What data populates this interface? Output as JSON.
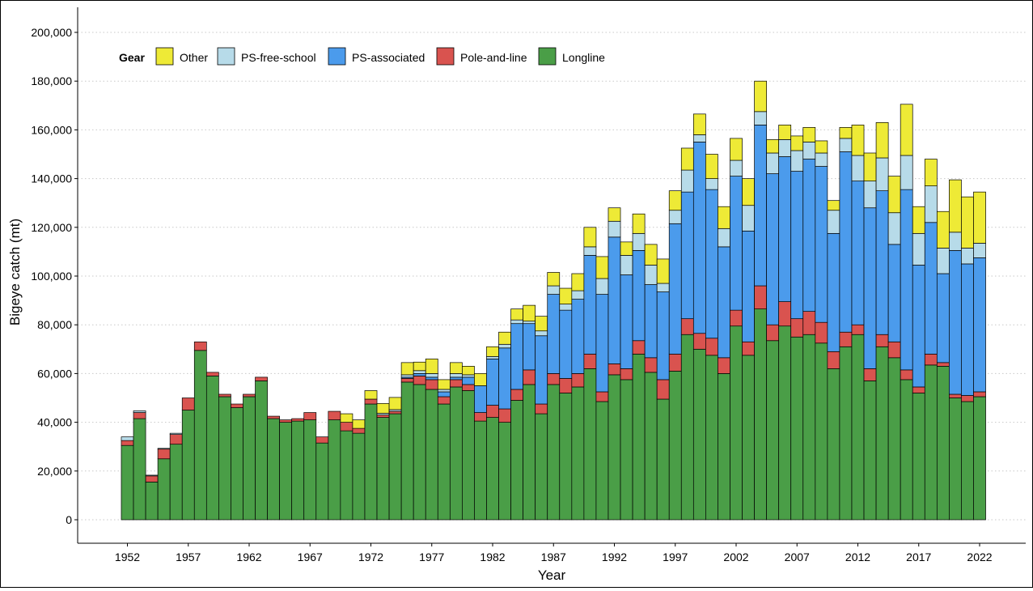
{
  "chart_data": {
    "type": "bar",
    "stacked": true,
    "title": "",
    "xlabel": "Year",
    "ylabel": "Bigeye catch (mt)",
    "ylim": [
      0,
      210000
    ],
    "y_ticks": [
      0,
      20000,
      40000,
      60000,
      80000,
      100000,
      120000,
      140000,
      160000,
      180000,
      200000
    ],
    "x_ticks": [
      1952,
      1957,
      1962,
      1967,
      1972,
      1977,
      1982,
      1987,
      1992,
      1997,
      2002,
      2007,
      2012,
      2017,
      2022
    ],
    "grid": "horizontal-dotted",
    "legend": {
      "title": "Gear",
      "placement": "top-left-inside"
    },
    "categories": [
      1952,
      1953,
      1954,
      1955,
      1956,
      1957,
      1958,
      1959,
      1960,
      1961,
      1962,
      1963,
      1964,
      1965,
      1966,
      1967,
      1968,
      1969,
      1970,
      1971,
      1972,
      1973,
      1974,
      1975,
      1976,
      1977,
      1978,
      1979,
      1980,
      1981,
      1982,
      1983,
      1984,
      1985,
      1986,
      1987,
      1988,
      1989,
      1990,
      1991,
      1992,
      1993,
      1994,
      1995,
      1996,
      1997,
      1998,
      1999,
      2000,
      2001,
      2002,
      2003,
      2004,
      2005,
      2006,
      2007,
      2008,
      2009,
      2010,
      2011,
      2012,
      2013,
      2014,
      2015,
      2016,
      2017,
      2018,
      2019,
      2020,
      2021,
      2022
    ],
    "series": [
      {
        "name": "Longline",
        "color": "#4a9e47",
        "values": [
          30500,
          41500,
          15500,
          25000,
          31000,
          45000,
          69500,
          59000,
          50500,
          46000,
          50500,
          57000,
          41500,
          40000,
          40500,
          41000,
          31500,
          41000,
          36500,
          35500,
          47500,
          42000,
          43500,
          56500,
          55500,
          53500,
          47500,
          54500,
          53000,
          40500,
          42000,
          40000,
          49000,
          55500,
          43500,
          55500,
          52000,
          54500,
          62000,
          48500,
          59500,
          57500,
          68000,
          60500,
          49500,
          61000,
          76000,
          70000,
          67500,
          60000,
          79500,
          67500,
          86500,
          73500,
          79500,
          75000,
          76000,
          72500,
          62000,
          71000,
          76000,
          57000,
          71000,
          66500,
          57500,
          52000,
          63500,
          63000,
          50000,
          48500,
          50500
        ]
      },
      {
        "name": "Pole-and-line",
        "color": "#d9534f",
        "values": [
          2000,
          2500,
          2500,
          4000,
          4000,
          5000,
          3500,
          1500,
          1000,
          1500,
          1000,
          1500,
          1000,
          1000,
          1000,
          3000,
          2500,
          3500,
          3500,
          2000,
          2000,
          1000,
          1000,
          1500,
          3500,
          4000,
          3000,
          3000,
          2500,
          3500,
          5000,
          5500,
          4500,
          6000,
          4000,
          4500,
          6000,
          5500,
          6000,
          4000,
          4500,
          4500,
          5500,
          6000,
          8000,
          7000,
          6500,
          6500,
          7000,
          6500,
          6500,
          5500,
          9500,
          6500,
          10000,
          7500,
          9500,
          8500,
          7000,
          6000,
          4000,
          5000,
          5000,
          6500,
          4000,
          2500,
          4500,
          1500,
          1500,
          2500,
          2000
        ]
      },
      {
        "name": "PS-associated",
        "color": "#4b9bec",
        "values": [
          0,
          0,
          0,
          0,
          0,
          0,
          0,
          0,
          0,
          0,
          0,
          0,
          0,
          0,
          0,
          0,
          0,
          0,
          0,
          0,
          0,
          0,
          0,
          500,
          1000,
          1000,
          2000,
          1000,
          3000,
          11000,
          19000,
          25000,
          27000,
          19000,
          28000,
          32500,
          28000,
          30500,
          40500,
          40000,
          52000,
          38500,
          37000,
          30000,
          36000,
          53500,
          52000,
          78500,
          61000,
          45500,
          55000,
          45500,
          66000,
          62000,
          59500,
          60500,
          62500,
          64000,
          48500,
          74000,
          59000,
          66000,
          59000,
          40000,
          74000,
          50000,
          54000,
          36500,
          59000,
          54000,
          55000
        ]
      },
      {
        "name": "PS-free-school",
        "color": "#b7dbe9",
        "values": [
          1500,
          700,
          300,
          300,
          500,
          0,
          0,
          0,
          0,
          0,
          0,
          0,
          0,
          0,
          0,
          0,
          0,
          0,
          0,
          0,
          0,
          700,
          700,
          1000,
          1200,
          1500,
          1000,
          1500,
          1000,
          0,
          1000,
          1500,
          1500,
          1000,
          2000,
          3500,
          2500,
          3500,
          3500,
          6500,
          6500,
          8000,
          7000,
          8000,
          3500,
          5500,
          9000,
          3000,
          4500,
          7500,
          6500,
          10500,
          5500,
          8500,
          7000,
          8500,
          7000,
          5500,
          9500,
          5500,
          10500,
          11000,
          13500,
          13000,
          14000,
          13000,
          15000,
          10500,
          7500,
          6500,
          6000
        ]
      },
      {
        "name": "Other",
        "color": "#eeea36",
        "values": [
          0,
          0,
          0,
          0,
          0,
          0,
          0,
          0,
          0,
          0,
          0,
          0,
          0,
          0,
          0,
          0,
          0,
          0,
          3500,
          3500,
          3500,
          4000,
          5000,
          5000,
          3500,
          6000,
          4000,
          4500,
          3500,
          5000,
          4000,
          5000,
          4500,
          6500,
          6000,
          5500,
          6500,
          7000,
          8000,
          9000,
          5500,
          5500,
          8000,
          8500,
          10000,
          8000,
          9000,
          8500,
          10000,
          9000,
          9000,
          11000,
          12500,
          5500,
          6000,
          6000,
          6000,
          5000,
          4000,
          4500,
          12500,
          11500,
          14500,
          15000,
          21000,
          11000,
          11000,
          15000,
          21500,
          21000,
          21000
        ]
      }
    ]
  }
}
